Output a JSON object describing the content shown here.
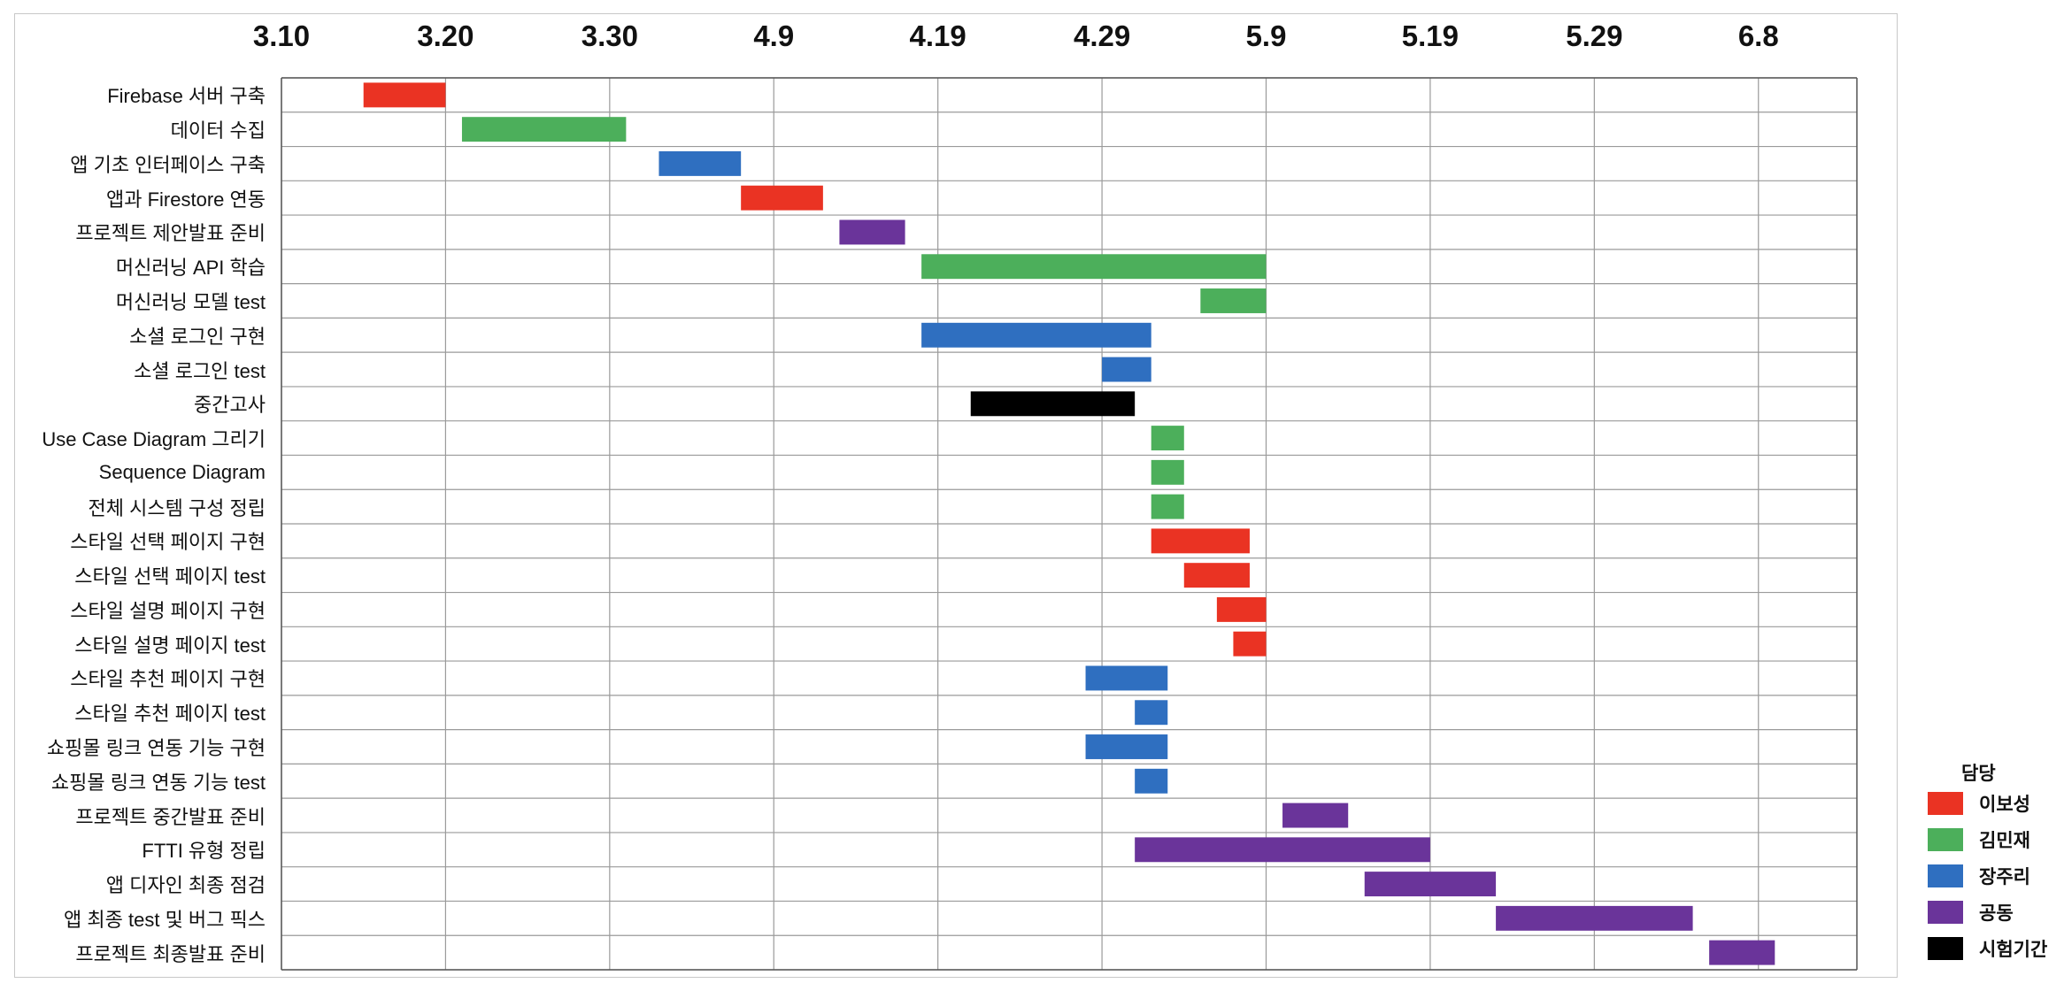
{
  "chart_data": {
    "type": "gantt",
    "title": "",
    "xlabel": "",
    "ylabel": "",
    "x_unit": "days",
    "x_ticks": [
      "3.10",
      "3.20",
      "3.30",
      "4.9",
      "4.19",
      "4.29",
      "5.9",
      "5.19",
      "5.29",
      "6.8"
    ],
    "x_tick_dates": [
      "03-10",
      "03-20",
      "03-30",
      "04-09",
      "04-19",
      "04-29",
      "05-09",
      "05-19",
      "05-29",
      "06-08"
    ],
    "xlim": [
      "03-10",
      "06-14"
    ],
    "grid": true,
    "legend_title": "담당",
    "legend_position": "bottom-right",
    "legend": [
      {
        "name": "이보성",
        "color": "#EA3323"
      },
      {
        "name": "김민재",
        "color": "#4CAF5B"
      },
      {
        "name": "장주리",
        "color": "#2F6FC0"
      },
      {
        "name": "공동",
        "color": "#6A349A"
      },
      {
        "name": "시험기간",
        "color": "#000000"
      }
    ],
    "tasks": [
      {
        "name": "Firebase 서버 구축",
        "start": "03-15",
        "end": "03-20",
        "owner": "이보성"
      },
      {
        "name": "데이터 수집",
        "start": "03-21",
        "end": "03-31",
        "owner": "김민재"
      },
      {
        "name": "앱 기초 인터페이스 구축",
        "start": "04-02",
        "end": "04-07",
        "owner": "장주리"
      },
      {
        "name": "앱과 Firestore 연동",
        "start": "04-07",
        "end": "04-12",
        "owner": "이보성"
      },
      {
        "name": "프로젝트 제안발표 준비",
        "start": "04-13",
        "end": "04-17",
        "owner": "공동"
      },
      {
        "name": "머신러닝 API 학습",
        "start": "04-18",
        "end": "05-09",
        "owner": "김민재"
      },
      {
        "name": "머신러닝 모델 test",
        "start": "05-05",
        "end": "05-09",
        "owner": "김민재"
      },
      {
        "name": "소셜 로그인 구현",
        "start": "04-18",
        "end": "05-02",
        "owner": "장주리"
      },
      {
        "name": "소셜 로그인 test",
        "start": "04-29",
        "end": "05-02",
        "owner": "장주리"
      },
      {
        "name": "중간고사",
        "start": "04-21",
        "end": "05-01",
        "owner": "시험기간"
      },
      {
        "name": "Use Case Diagram 그리기",
        "start": "05-02",
        "end": "05-04",
        "owner": "김민재"
      },
      {
        "name": "Sequence Diagram",
        "start": "05-02",
        "end": "05-04",
        "owner": "김민재"
      },
      {
        "name": "전체 시스템 구성 정립",
        "start": "05-02",
        "end": "05-04",
        "owner": "김민재"
      },
      {
        "name": "스타일 선택 페이지 구현",
        "start": "05-02",
        "end": "05-08",
        "owner": "이보성"
      },
      {
        "name": "스타일 선택 페이지 test",
        "start": "05-04",
        "end": "05-08",
        "owner": "이보성"
      },
      {
        "name": "스타일 설명 페이지 구현",
        "start": "05-06",
        "end": "05-09",
        "owner": "이보성"
      },
      {
        "name": "스타일 설명 페이지 test",
        "start": "05-07",
        "end": "05-09",
        "owner": "이보성"
      },
      {
        "name": "스타일 추천 페이지 구현",
        "start": "04-28",
        "end": "05-03",
        "owner": "장주리"
      },
      {
        "name": "스타일 추천 페이지 test",
        "start": "05-01",
        "end": "05-03",
        "owner": "장주리"
      },
      {
        "name": "쇼핑몰 링크 연동 기능 구현",
        "start": "04-28",
        "end": "05-03",
        "owner": "장주리"
      },
      {
        "name": "쇼핑몰 링크 연동 기능 test",
        "start": "05-01",
        "end": "05-03",
        "owner": "장주리"
      },
      {
        "name": "프로젝트 중간발표 준비",
        "start": "05-10",
        "end": "05-14",
        "owner": "공동"
      },
      {
        "name": "FTTI 유형 정립",
        "start": "05-01",
        "end": "05-19",
        "owner": "공동"
      },
      {
        "name": "앱 디자인 최종 점검",
        "start": "05-15",
        "end": "05-23",
        "owner": "공동"
      },
      {
        "name": "앱 최종 test 및 버그 픽스",
        "start": "05-23",
        "end": "06-04",
        "owner": "공동"
      },
      {
        "name": "프로젝트 최종발표 준비",
        "start": "06-05",
        "end": "06-09",
        "owner": "공동"
      }
    ]
  }
}
